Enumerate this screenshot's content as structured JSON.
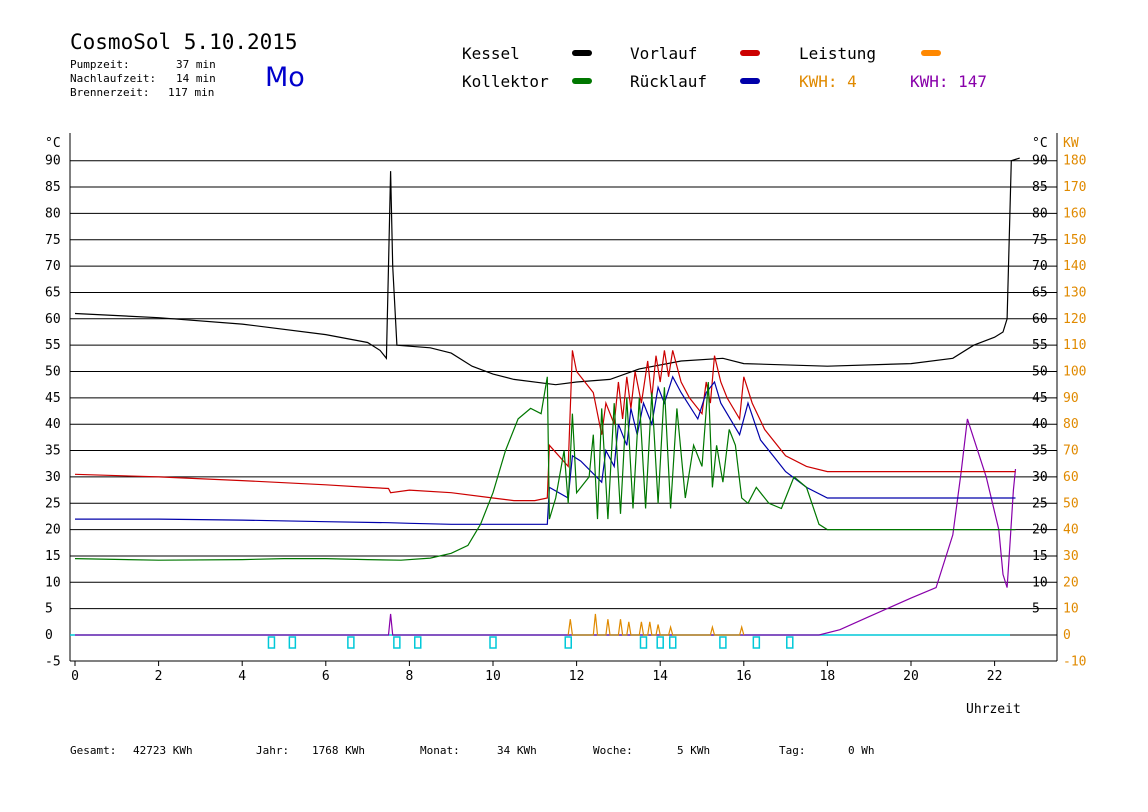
{
  "header": {
    "title": "CosmoSol 5.10.2015",
    "weekday": "Mo",
    "stats": [
      {
        "label": "Pumpzeit:",
        "value": "37 min"
      },
      {
        "label": "Nachlaufzeit:",
        "value": "14 min"
      },
      {
        "label": "Brennerzeit:",
        "value": "117 min"
      }
    ]
  },
  "legend": {
    "kessel": "Kessel",
    "vorlauf": "Vorlauf",
    "leistung": "Leistung",
    "kollektor": "Kollektor",
    "ruecklauf": "Rücklauf",
    "kwh_orange": "KWH: 4",
    "kwh_purple": "KWH: 147"
  },
  "colors": {
    "kessel": "#000000",
    "vorlauf": "#cc0000",
    "leistung": "#ff8800",
    "kollektor": "#007700",
    "ruecklauf": "#0000aa",
    "kwh_orange": "#e08a00",
    "kwh_purple": "#8800aa",
    "baseline": "#00c8d8"
  },
  "footer": [
    {
      "label": "Gesamt:",
      "value": "42723 KWh"
    },
    {
      "label": "Jahr:",
      "value": "1768 KWh"
    },
    {
      "label": "Monat:",
      "value": "34 KWh"
    },
    {
      "label": "Woche:",
      "value": "5 KWh"
    },
    {
      "label": "Tag:",
      "value": "0 Wh"
    }
  ],
  "chart_data": {
    "type": "line",
    "xlabel": "Uhrzeit",
    "ylabel_left": "°C",
    "ylabel_right_temp": "°C",
    "ylabel_right_power": "KW",
    "xlim": [
      0,
      23.5
    ],
    "ylim": [
      -5,
      93
    ],
    "grid": true,
    "x_ticks": [
      0,
      2,
      4,
      6,
      8,
      10,
      12,
      14,
      16,
      18,
      20,
      22
    ],
    "y_ticks_left": [
      90,
      85,
      80,
      75,
      70,
      65,
      60,
      55,
      50,
      45,
      40,
      35,
      30,
      25,
      20,
      15,
      10,
      5,
      0,
      -5
    ],
    "y_ticks_right_temp": [
      90,
      85,
      80,
      75,
      70,
      65,
      60,
      55,
      50,
      45,
      40,
      35,
      30,
      25,
      20,
      15,
      10,
      5
    ],
    "y_ticks_right_power": [
      180,
      170,
      160,
      150,
      140,
      130,
      120,
      110,
      100,
      90,
      80,
      70,
      60,
      50,
      40,
      30,
      20,
      10,
      0,
      -10
    ],
    "series": [
      {
        "name": "Kessel",
        "color": "#000000",
        "points": [
          [
            0,
            61
          ],
          [
            2,
            60.2
          ],
          [
            4,
            59
          ],
          [
            6,
            57
          ],
          [
            7,
            55.5
          ],
          [
            7.3,
            54
          ],
          [
            7.45,
            52.5
          ],
          [
            7.5,
            70
          ],
          [
            7.55,
            88
          ],
          [
            7.6,
            70
          ],
          [
            7.7,
            55
          ],
          [
            8.5,
            54.5
          ],
          [
            9,
            53.5
          ],
          [
            9.5,
            51
          ],
          [
            10,
            49.5
          ],
          [
            10.5,
            48.5
          ],
          [
            11.5,
            47.5
          ],
          [
            12,
            48
          ],
          [
            12.8,
            48.5
          ],
          [
            13.5,
            50.5
          ],
          [
            14.5,
            52
          ],
          [
            15.5,
            52.5
          ],
          [
            16,
            51.5
          ],
          [
            18,
            51
          ],
          [
            20,
            51.5
          ],
          [
            21,
            52.5
          ],
          [
            21.5,
            55
          ],
          [
            22,
            56.5
          ],
          [
            22.2,
            57.5
          ],
          [
            22.3,
            60
          ],
          [
            22.35,
            75
          ],
          [
            22.4,
            90
          ],
          [
            22.6,
            90.5
          ]
        ]
      },
      {
        "name": "Vorlauf",
        "color": "#cc0000",
        "points": [
          [
            0,
            30.5
          ],
          [
            2,
            30
          ],
          [
            4,
            29.3
          ],
          [
            6,
            28.5
          ],
          [
            7,
            28
          ],
          [
            7.5,
            27.8
          ],
          [
            7.55,
            27
          ],
          [
            8,
            27.5
          ],
          [
            9,
            27
          ],
          [
            10,
            26
          ],
          [
            10.5,
            25.5
          ],
          [
            11,
            25.5
          ],
          [
            11.3,
            26
          ],
          [
            11.35,
            36
          ],
          [
            11.8,
            32
          ],
          [
            11.9,
            54
          ],
          [
            12,
            50
          ],
          [
            12.4,
            46
          ],
          [
            12.6,
            38
          ],
          [
            12.7,
            44
          ],
          [
            12.9,
            40
          ],
          [
            13,
            48
          ],
          [
            13.1,
            41
          ],
          [
            13.2,
            49
          ],
          [
            13.3,
            43
          ],
          [
            13.4,
            50
          ],
          [
            13.55,
            44
          ],
          [
            13.7,
            52
          ],
          [
            13.8,
            45
          ],
          [
            13.9,
            53
          ],
          [
            14,
            48
          ],
          [
            14.1,
            54
          ],
          [
            14.2,
            49
          ],
          [
            14.3,
            54
          ],
          [
            14.5,
            48
          ],
          [
            14.7,
            45
          ],
          [
            15,
            42
          ],
          [
            15.1,
            48
          ],
          [
            15.2,
            44
          ],
          [
            15.3,
            53
          ],
          [
            15.45,
            48
          ],
          [
            15.6,
            45
          ],
          [
            15.9,
            41
          ],
          [
            16,
            49
          ],
          [
            16.2,
            44
          ],
          [
            16.5,
            39
          ],
          [
            17,
            34
          ],
          [
            17.5,
            32
          ],
          [
            18,
            31
          ],
          [
            20,
            31
          ],
          [
            22.5,
            31
          ]
        ]
      },
      {
        "name": "Rücklauf",
        "color": "#0000aa",
        "points": [
          [
            0,
            22
          ],
          [
            2,
            22
          ],
          [
            4,
            21.8
          ],
          [
            6,
            21.5
          ],
          [
            7.5,
            21.3
          ],
          [
            8,
            21.2
          ],
          [
            9,
            21
          ],
          [
            10,
            21
          ],
          [
            11.3,
            21
          ],
          [
            11.35,
            28
          ],
          [
            11.8,
            26
          ],
          [
            11.9,
            34
          ],
          [
            12.1,
            33
          ],
          [
            12.6,
            29
          ],
          [
            12.7,
            35
          ],
          [
            12.9,
            32
          ],
          [
            13,
            40
          ],
          [
            13.2,
            36
          ],
          [
            13.3,
            43
          ],
          [
            13.45,
            38
          ],
          [
            13.6,
            44
          ],
          [
            13.8,
            40
          ],
          [
            13.95,
            47
          ],
          [
            14.1,
            44
          ],
          [
            14.3,
            49
          ],
          [
            14.5,
            46
          ],
          [
            14.9,
            41
          ],
          [
            15.1,
            46
          ],
          [
            15.3,
            48
          ],
          [
            15.45,
            44
          ],
          [
            15.6,
            42
          ],
          [
            15.9,
            38
          ],
          [
            16.1,
            44
          ],
          [
            16.4,
            37
          ],
          [
            16.7,
            34
          ],
          [
            17,
            31
          ],
          [
            17.5,
            28
          ],
          [
            18,
            26
          ],
          [
            20,
            26
          ],
          [
            22.5,
            26
          ]
        ]
      },
      {
        "name": "Kollektor",
        "color": "#007700",
        "points": [
          [
            0,
            14.5
          ],
          [
            2,
            14.2
          ],
          [
            4,
            14.3
          ],
          [
            5,
            14.5
          ],
          [
            6,
            14.5
          ],
          [
            7,
            14.3
          ],
          [
            7.8,
            14.2
          ],
          [
            8.5,
            14.6
          ],
          [
            9,
            15.5
          ],
          [
            9.4,
            17
          ],
          [
            9.7,
            21
          ],
          [
            10,
            27
          ],
          [
            10.3,
            35
          ],
          [
            10.6,
            41
          ],
          [
            10.9,
            43
          ],
          [
            11.15,
            42
          ],
          [
            11.3,
            49
          ],
          [
            11.35,
            22
          ],
          [
            11.5,
            26
          ],
          [
            11.7,
            35
          ],
          [
            11.8,
            25
          ],
          [
            11.9,
            42
          ],
          [
            12,
            27
          ],
          [
            12.3,
            30
          ],
          [
            12.4,
            38
          ],
          [
            12.5,
            22
          ],
          [
            12.6,
            43
          ],
          [
            12.75,
            22
          ],
          [
            12.9,
            44
          ],
          [
            13.05,
            23
          ],
          [
            13.2,
            45
          ],
          [
            13.35,
            24
          ],
          [
            13.5,
            45
          ],
          [
            13.65,
            24
          ],
          [
            13.8,
            46
          ],
          [
            13.95,
            25
          ],
          [
            14.1,
            47
          ],
          [
            14.25,
            24
          ],
          [
            14.4,
            43
          ],
          [
            14.6,
            26
          ],
          [
            14.8,
            36
          ],
          [
            15,
            32
          ],
          [
            15.15,
            48
          ],
          [
            15.25,
            28
          ],
          [
            15.35,
            36
          ],
          [
            15.5,
            29
          ],
          [
            15.65,
            39
          ],
          [
            15.8,
            36
          ],
          [
            15.95,
            26
          ],
          [
            16.1,
            25
          ],
          [
            16.3,
            28
          ],
          [
            16.6,
            25
          ],
          [
            16.9,
            24
          ],
          [
            17.2,
            30
          ],
          [
            17.5,
            28
          ],
          [
            17.8,
            21
          ],
          [
            18,
            20
          ],
          [
            20,
            20
          ],
          [
            22.5,
            20
          ]
        ]
      }
    ],
    "series_power": [
      {
        "name": "KWH: 147",
        "color": "#8800aa",
        "points": [
          [
            0,
            0
          ],
          [
            7.5,
            0
          ],
          [
            7.55,
            8
          ],
          [
            7.6,
            0
          ],
          [
            11.3,
            0
          ],
          [
            17.8,
            0
          ],
          [
            18.3,
            2
          ],
          [
            19,
            7
          ],
          [
            20,
            14
          ],
          [
            20.6,
            18
          ],
          [
            21,
            38
          ],
          [
            21.2,
            62
          ],
          [
            21.35,
            82
          ],
          [
            21.8,
            60
          ],
          [
            22.1,
            40
          ],
          [
            22.2,
            23
          ],
          [
            22.3,
            18
          ],
          [
            22.35,
            30
          ],
          [
            22.45,
            55
          ],
          [
            22.5,
            63
          ]
        ]
      },
      {
        "name": "KWH: 4",
        "color": "#e08a00",
        "points": [
          [
            11.8,
            0
          ],
          [
            11.85,
            6
          ],
          [
            11.9,
            0
          ],
          [
            12.4,
            0
          ],
          [
            12.45,
            8
          ],
          [
            12.5,
            0
          ],
          [
            12.7,
            0
          ],
          [
            12.75,
            6
          ],
          [
            12.8,
            0
          ],
          [
            13,
            0
          ],
          [
            13.05,
            6
          ],
          [
            13.1,
            0
          ],
          [
            13.2,
            0
          ],
          [
            13.25,
            5
          ],
          [
            13.3,
            0
          ],
          [
            13.5,
            0
          ],
          [
            13.55,
            5
          ],
          [
            13.6,
            0
          ],
          [
            13.7,
            0
          ],
          [
            13.75,
            5
          ],
          [
            13.8,
            0
          ],
          [
            13.9,
            0
          ],
          [
            13.95,
            4
          ],
          [
            14,
            0
          ],
          [
            14.2,
            0
          ],
          [
            14.25,
            3
          ],
          [
            14.3,
            0
          ],
          [
            15.2,
            0
          ],
          [
            15.25,
            3
          ],
          [
            15.3,
            0
          ],
          [
            15.9,
            0
          ],
          [
            15.95,
            3
          ],
          [
            16,
            0
          ]
        ]
      }
    ],
    "baseline_markers_x": [
      4.7,
      5.2,
      6.6,
      7.7,
      8.2,
      10,
      11.8,
      13.6,
      14,
      14.3,
      15.5,
      16.3,
      17.1
    ]
  }
}
